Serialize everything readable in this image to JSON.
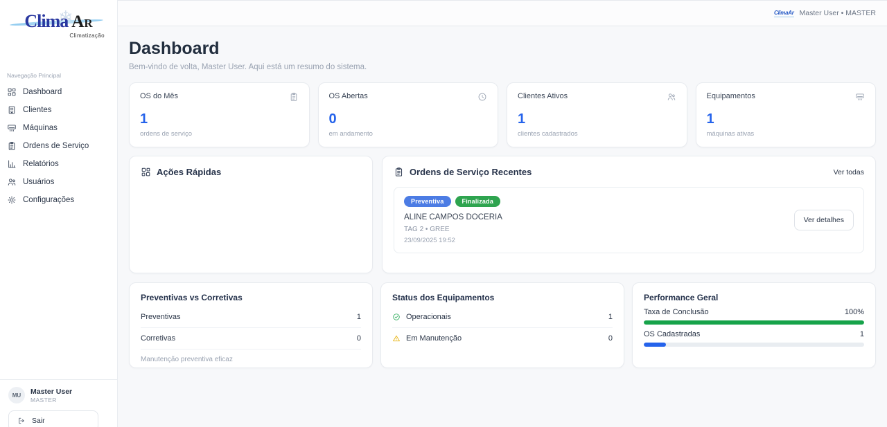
{
  "colors": {
    "accent": "#2563eb",
    "badge_blue": "#4c7ce4",
    "badge_green": "#2ea44f",
    "progress_green": "#17a34a",
    "warning_amber": "#e7b008"
  },
  "sidebar": {
    "logo": {
      "brand_clima": "Clima",
      "brand_a": "A",
      "brand_r": "R",
      "subtitle": "Climatização",
      "snowflake": "❄"
    },
    "section_label": "Navegação Principal",
    "items": [
      {
        "label": "Dashboard",
        "icon": "grid-icon"
      },
      {
        "label": "Clientes",
        "icon": "building-icon"
      },
      {
        "label": "Máquinas",
        "icon": "ac-unit-icon"
      },
      {
        "label": "Ordens de Serviço",
        "icon": "clipboard-icon"
      },
      {
        "label": "Relatórios",
        "icon": "bar-chart-icon"
      },
      {
        "label": "Usuários",
        "icon": "users-icon"
      },
      {
        "label": "Configurações",
        "icon": "gear-icon"
      }
    ],
    "user": {
      "initials": "MU",
      "name": "Master User",
      "role": "MASTER",
      "logout_label": "Sair"
    }
  },
  "topbar": {
    "mini_logo": "ClimaAr",
    "user_label": "Master User • MASTER"
  },
  "page": {
    "title": "Dashboard",
    "subtitle": "Bem-vindo de volta, Master User. Aqui está um resumo do sistema."
  },
  "stats": [
    {
      "label": "OS do Mês",
      "value": "1",
      "caption": "ordens de serviço",
      "icon": "clipboard-icon"
    },
    {
      "label": "OS Abertas",
      "value": "0",
      "caption": "em andamento",
      "icon": "clock-icon"
    },
    {
      "label": "Clientes Ativos",
      "value": "1",
      "caption": "clientes cadastrados",
      "icon": "users-icon"
    },
    {
      "label": "Equipamentos",
      "value": "1",
      "caption": "máquinas ativas",
      "icon": "ac-unit-icon"
    }
  ],
  "quick_actions": {
    "title": "Ações Rápidas"
  },
  "recent_orders": {
    "title": "Ordens de Serviço Recentes",
    "view_all_label": "Ver todas",
    "orders": [
      {
        "type_badge": "Preventiva",
        "status_badge": "Finalizada",
        "client": "ALINE CAMPOS DOCERIA",
        "machine": "TAG 2 • GREE",
        "datetime": "23/09/2025 19:52",
        "details_label": "Ver detalhes"
      }
    ]
  },
  "preventive_vs_corrective": {
    "title": "Preventivas vs Corretivas",
    "rows": [
      {
        "label": "Preventivas",
        "value": "1"
      },
      {
        "label": "Corretivas",
        "value": "0"
      }
    ],
    "footer": "Manutenção preventiva eficaz"
  },
  "equipment_status": {
    "title": "Status dos Equipamentos",
    "rows": [
      {
        "label": "Operacionais",
        "value": "1",
        "icon": "check-circle-icon"
      },
      {
        "label": "Em Manutenção",
        "value": "0",
        "icon": "warning-triangle-icon"
      }
    ]
  },
  "performance": {
    "title": "Performance Geral",
    "metrics": [
      {
        "label": "Taxa de Conclusão",
        "value": "100%",
        "percent": 100
      },
      {
        "label": "OS Cadastradas",
        "value": "1",
        "percent": 10
      }
    ]
  }
}
